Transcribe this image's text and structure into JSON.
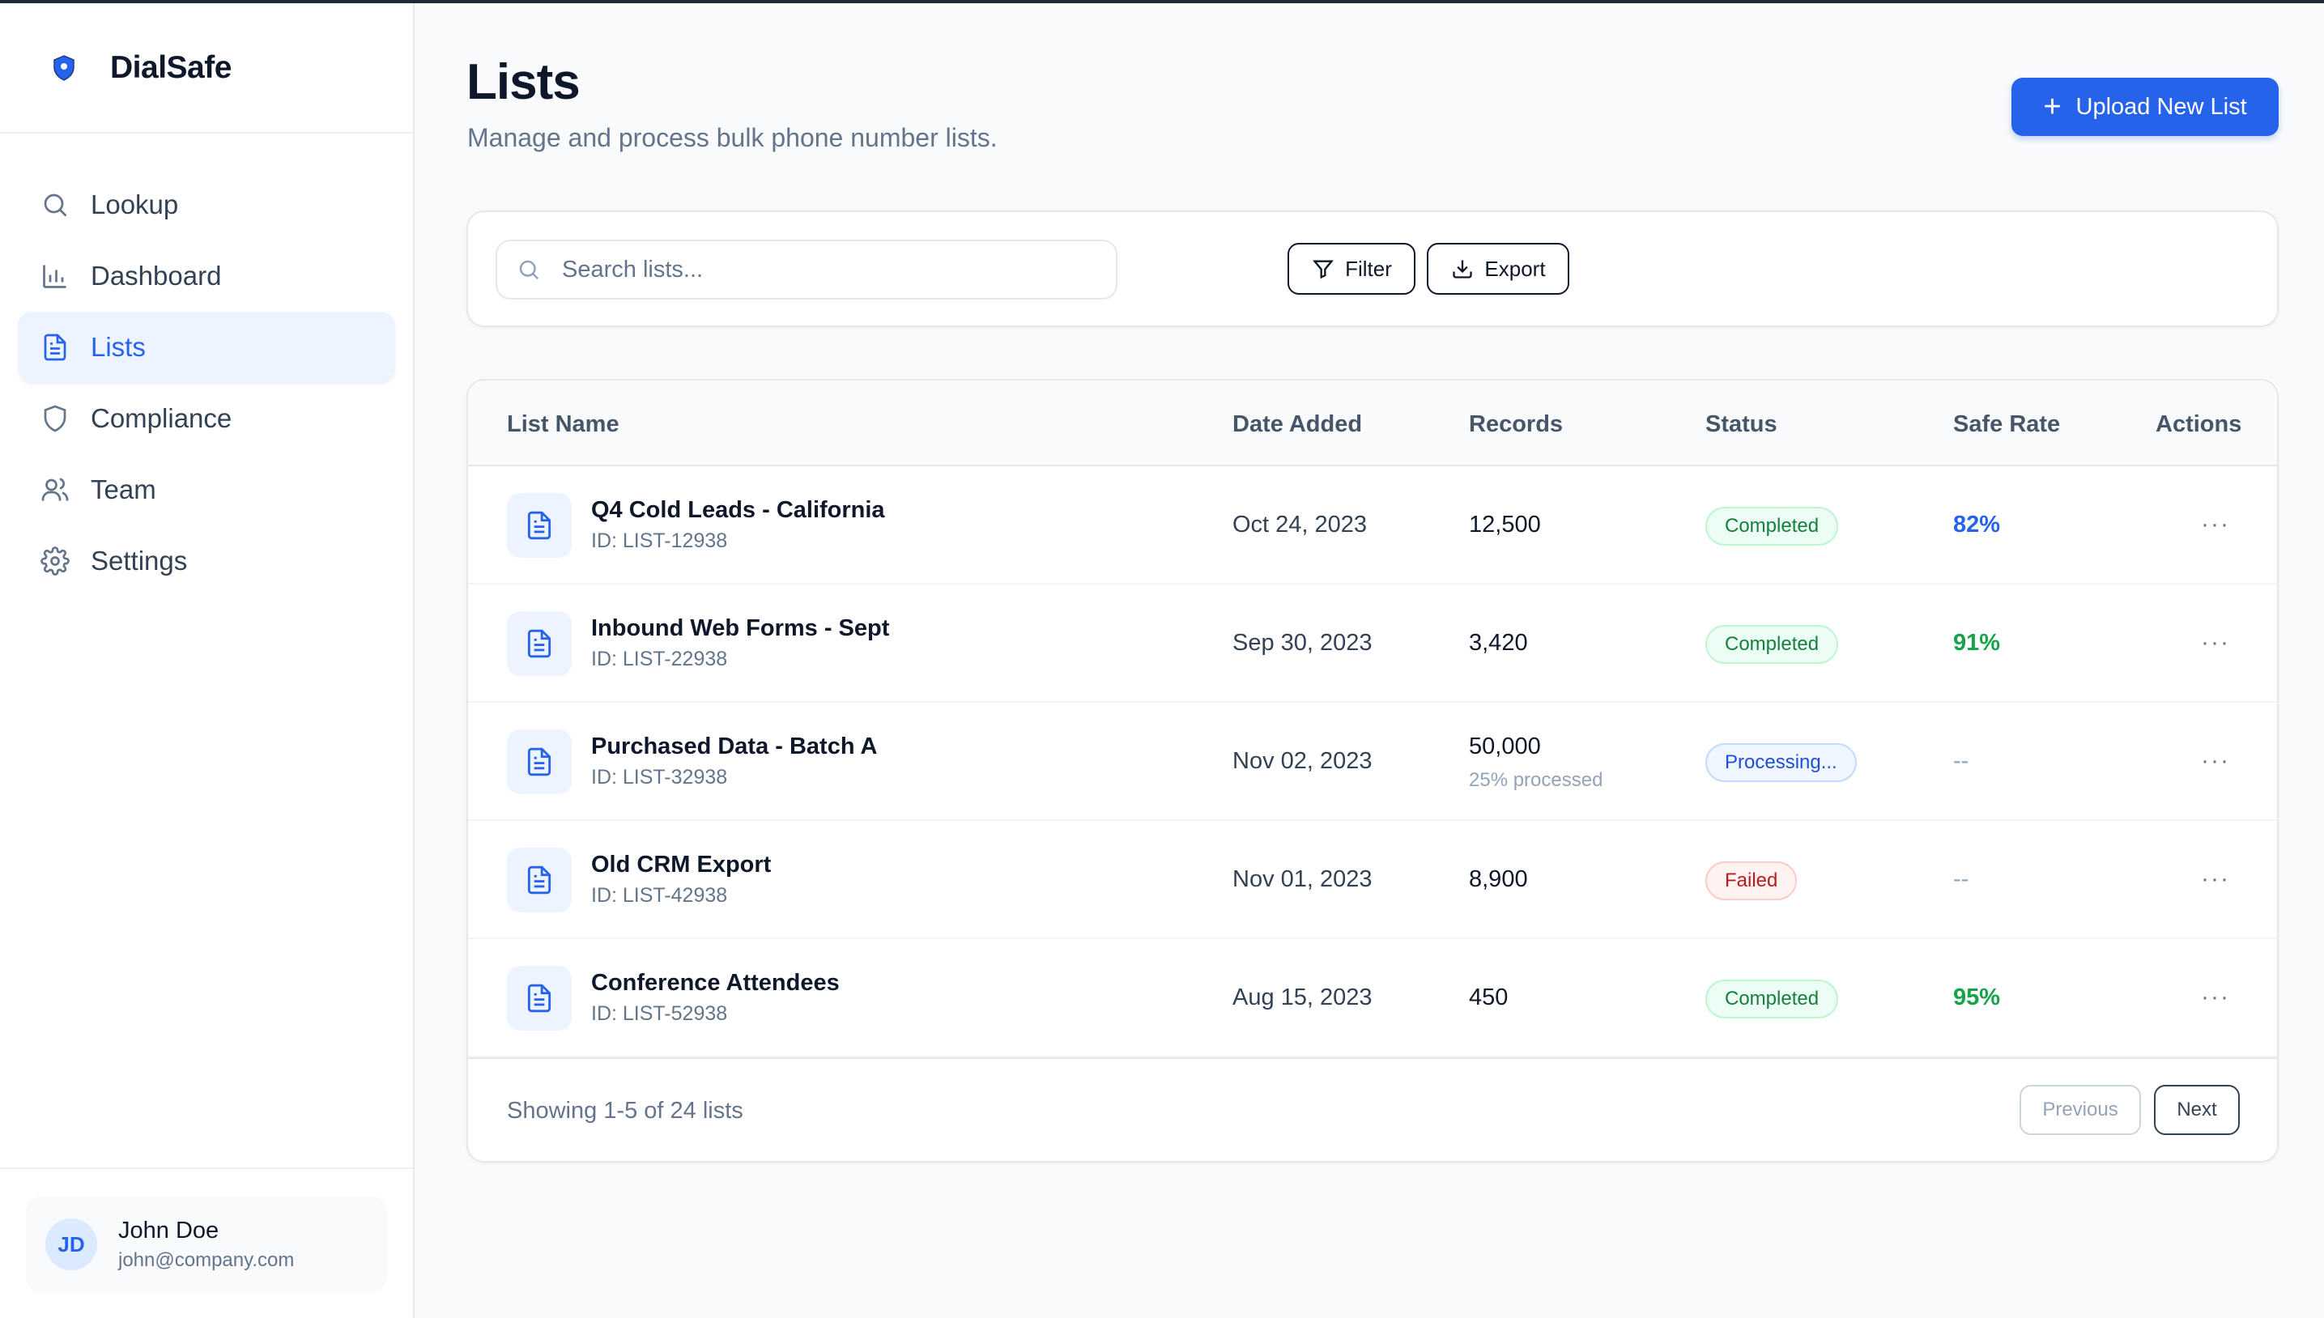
{
  "brand": {
    "name": "DialSafe"
  },
  "sidebar": {
    "items": [
      {
        "label": "Lookup",
        "icon": "search-icon",
        "active": false
      },
      {
        "label": "Dashboard",
        "icon": "bar-chart-icon",
        "active": false
      },
      {
        "label": "Lists",
        "icon": "document-icon",
        "active": true
      },
      {
        "label": "Compliance",
        "icon": "shield-icon",
        "active": false
      },
      {
        "label": "Team",
        "icon": "users-icon",
        "active": false
      },
      {
        "label": "Settings",
        "icon": "gear-icon",
        "active": false
      }
    ],
    "user": {
      "initials": "JD",
      "name": "John Doe",
      "email": "john@company.com"
    }
  },
  "header": {
    "title": "Lists",
    "subtitle": "Manage and process bulk phone number lists.",
    "upload_label": "Upload New List"
  },
  "toolbar": {
    "search_placeholder": "Search lists...",
    "filter_label": "Filter",
    "export_label": "Export"
  },
  "table": {
    "columns": [
      "List Name",
      "Date Added",
      "Records",
      "Status",
      "Safe Rate",
      "Actions"
    ],
    "rows": [
      {
        "name": "Q4 Cold Leads - California",
        "id": "ID: LIST-12938",
        "date": "Oct 24, 2023",
        "records": "12,500",
        "processed": "",
        "status": "Completed",
        "status_type": "completed",
        "safe_rate": "82%",
        "safe_rate_color": "blue"
      },
      {
        "name": "Inbound Web Forms - Sept",
        "id": "ID: LIST-22938",
        "date": "Sep 30, 2023",
        "records": "3,420",
        "processed": "",
        "status": "Completed",
        "status_type": "completed",
        "safe_rate": "91%",
        "safe_rate_color": "green"
      },
      {
        "name": "Purchased Data - Batch A",
        "id": "ID: LIST-32938",
        "date": "Nov 02, 2023",
        "records": "50,000",
        "processed": "25% processed",
        "status": "Processing...",
        "status_type": "processing",
        "safe_rate": "--",
        "safe_rate_color": "none"
      },
      {
        "name": "Old CRM Export",
        "id": "ID: LIST-42938",
        "date": "Nov 01, 2023",
        "records": "8,900",
        "processed": "",
        "status": "Failed",
        "status_type": "failed",
        "safe_rate": "--",
        "safe_rate_color": "none"
      },
      {
        "name": "Conference Attendees",
        "id": "ID: LIST-52938",
        "date": "Aug 15, 2023",
        "records": "450",
        "processed": "",
        "status": "Completed",
        "status_type": "completed",
        "safe_rate": "95%",
        "safe_rate_color": "green"
      }
    ],
    "actions_glyph": "···"
  },
  "pagination": {
    "showing": "Showing 1-5 of 24 lists",
    "previous_label": "Previous",
    "next_label": "Next"
  },
  "colors": {
    "accent": "#2563eb",
    "success": "#16a34a",
    "danger": "#b91c1c"
  }
}
